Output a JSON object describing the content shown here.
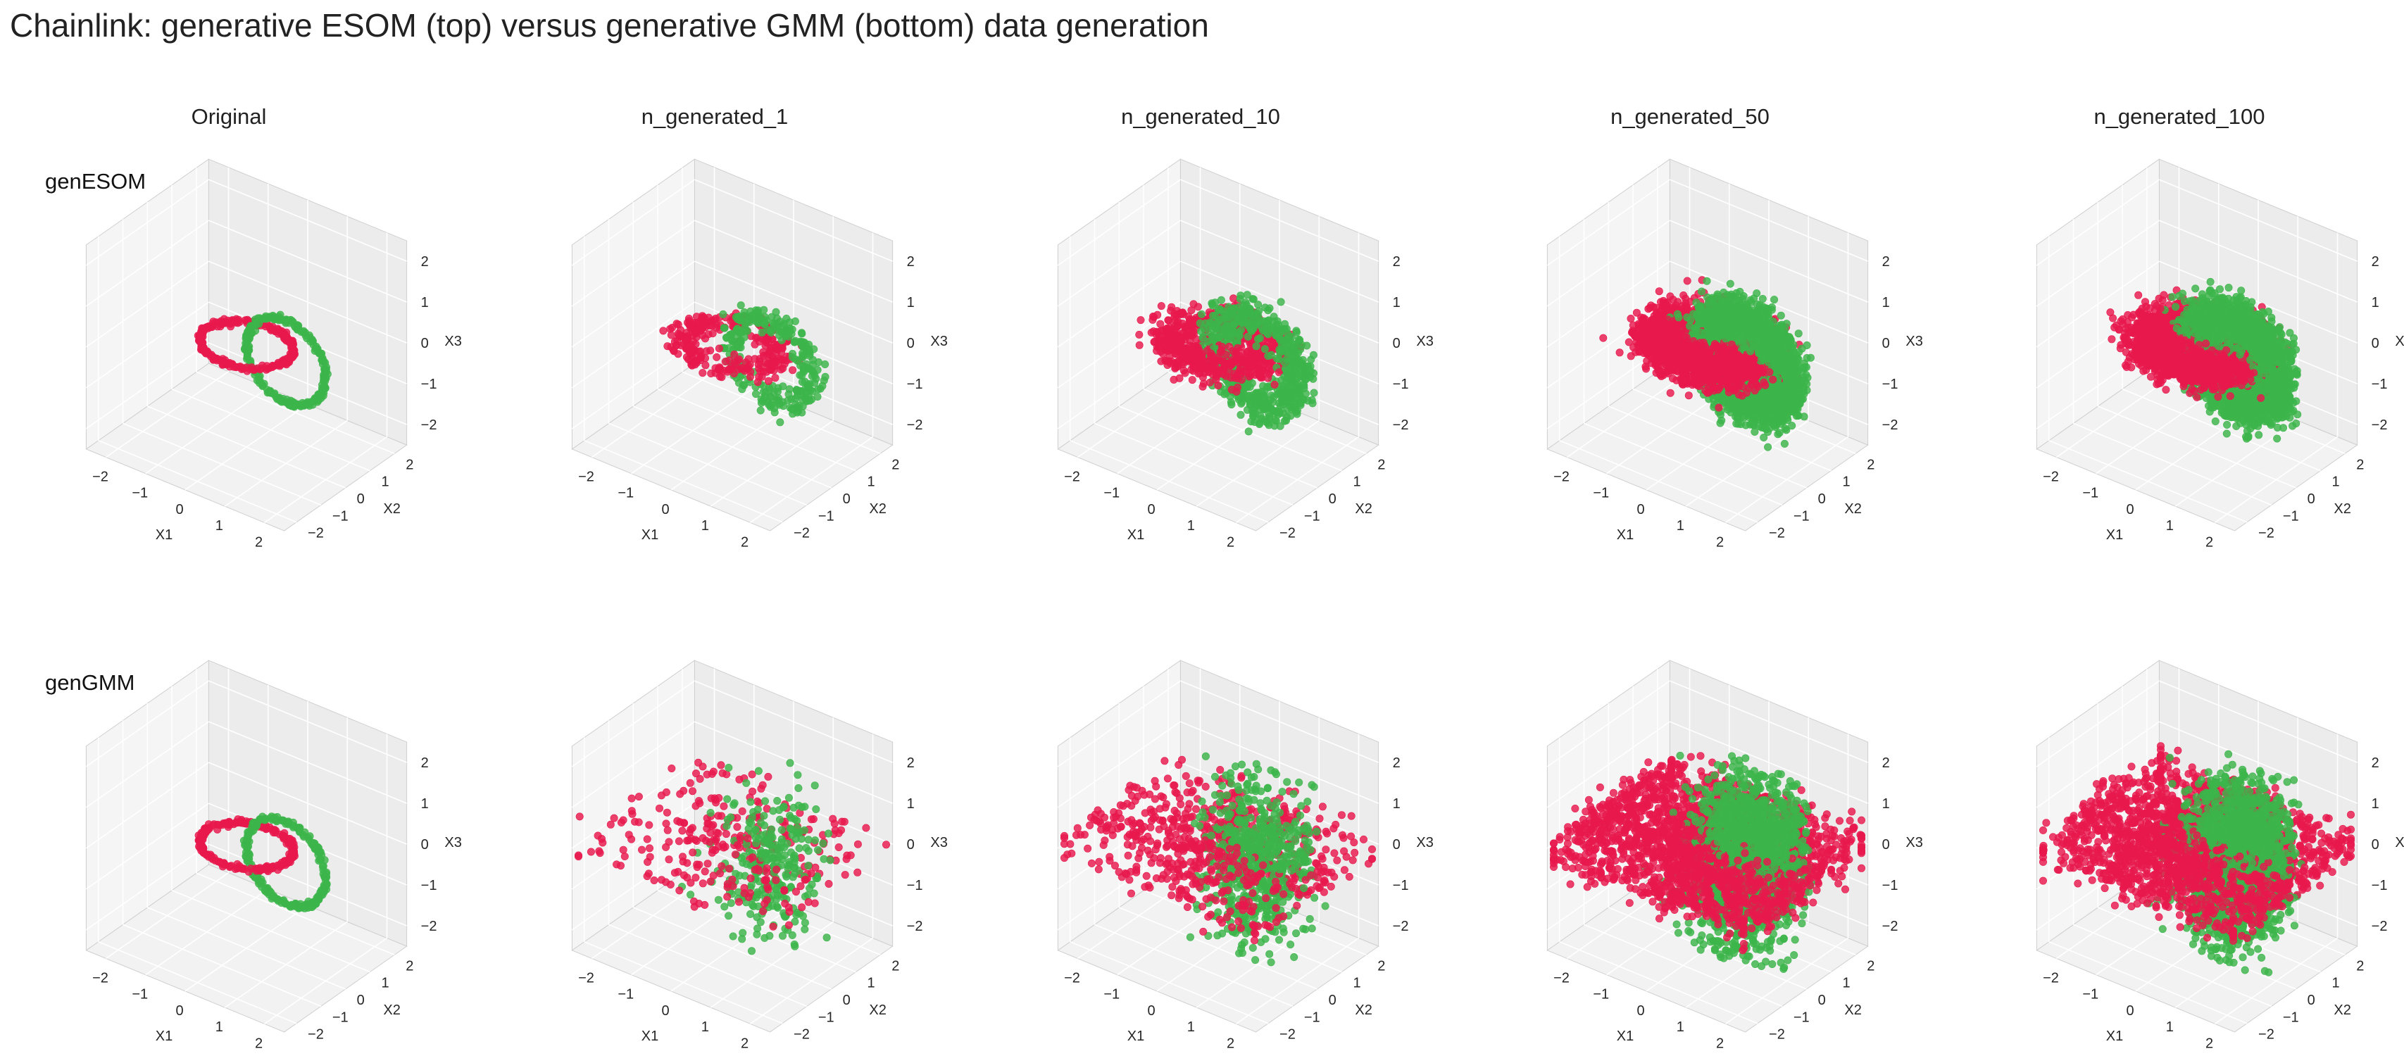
{
  "figure": {
    "title": "Chainlink: generative ESOM (top) versus generative GMM (bottom) data generation",
    "columns": [
      "Original",
      "n_generated_1",
      "n_generated_10",
      "n_generated_50",
      "n_generated_100"
    ],
    "rows": [
      "genESOM",
      "genGMM"
    ]
  },
  "colors": {
    "cluster_red": "#e8194d",
    "cluster_green": "#3cb54a",
    "pane": "#f2f2f2",
    "grid": "#ffffff",
    "edge": "#cfcfcf"
  },
  "chart_data": {
    "type": "scatter",
    "projection": "3d",
    "xlabel": "X1",
    "ylabel": "X2",
    "zlabel": "X3",
    "xlim": [
      -2.5,
      2.5
    ],
    "ylim": [
      -2.5,
      2.5
    ],
    "zlim": [
      -2.5,
      2.5
    ],
    "xticks": [
      "−2",
      "−1",
      "0",
      "1",
      "2"
    ],
    "yticks": [
      "−2",
      "−1",
      "0",
      "1",
      "2"
    ],
    "zticks": [
      "−2",
      "−1",
      "0",
      "1",
      "2"
    ],
    "grid": true,
    "series_colors": [
      "#e8194d",
      "#3cb54a"
    ],
    "panels": [
      {
        "row": "genESOM",
        "column": "Original",
        "generator": "original",
        "n_generated": 0,
        "spread": 0.05
      },
      {
        "row": "genESOM",
        "column": "n_generated_1",
        "generator": "esom",
        "n_generated": 1,
        "spread": 0.2
      },
      {
        "row": "genESOM",
        "column": "n_generated_10",
        "generator": "esom",
        "n_generated": 10,
        "spread": 0.3
      },
      {
        "row": "genESOM",
        "column": "n_generated_50",
        "generator": "esom",
        "n_generated": 50,
        "spread": 0.35
      },
      {
        "row": "genESOM",
        "column": "n_generated_100",
        "generator": "esom",
        "n_generated": 100,
        "spread": 0.35
      },
      {
        "row": "genGMM",
        "column": "Original",
        "generator": "original",
        "n_generated": 0,
        "spread": 0.05
      },
      {
        "row": "genGMM",
        "column": "n_generated_1",
        "generator": "gmm",
        "n_generated": 1,
        "spread": 0.6
      },
      {
        "row": "genGMM",
        "column": "n_generated_10",
        "generator": "gmm",
        "n_generated": 10,
        "spread": 0.65
      },
      {
        "row": "genGMM",
        "column": "n_generated_50",
        "generator": "gmm",
        "n_generated": 50,
        "spread": 0.7
      },
      {
        "row": "genGMM",
        "column": "n_generated_100",
        "generator": "gmm",
        "n_generated": 100,
        "spread": 0.7
      }
    ]
  }
}
